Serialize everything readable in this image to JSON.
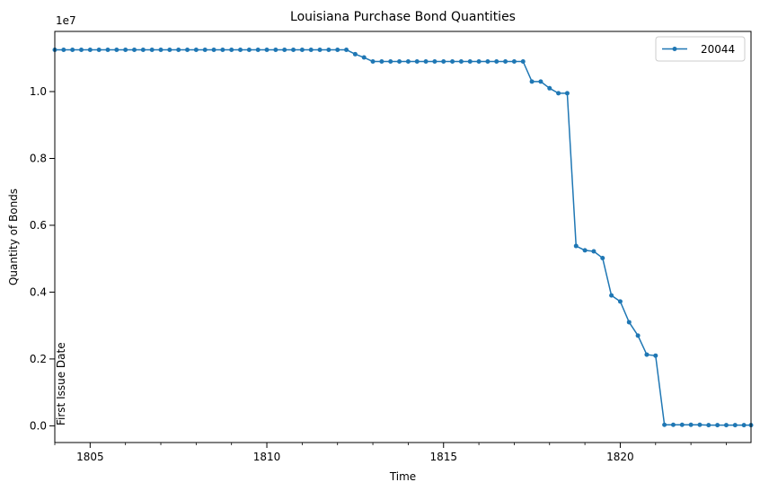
{
  "chart_data": {
    "type": "line",
    "title": "Louisiana Purchase Bond Quantities",
    "xlabel": "Time",
    "ylabel": "Quantity of Bonds",
    "y_offset_label": "1e7",
    "annotation": "First Issue Date",
    "xlim": [
      1804.0,
      1823.7
    ],
    "ylim": [
      -0.05,
      1.18
    ],
    "x_ticks": [
      1805,
      1810,
      1815,
      1820
    ],
    "y_ticks": [
      0.0,
      0.2,
      0.4,
      0.6,
      0.8,
      1.0
    ],
    "y_tick_labels": [
      "0.0",
      "0.2",
      "0.4",
      "0.6",
      "0.8",
      "1.0"
    ],
    "x_tick_labels": [
      "1805",
      "1810",
      "1815",
      "1820"
    ],
    "grid": false,
    "legend_position": "top-right",
    "series": [
      {
        "name": "20044",
        "color": "#1f77b4",
        "marker": "circle",
        "x": [
          1804.0,
          1804.25,
          1804.5,
          1804.75,
          1805.0,
          1805.25,
          1805.5,
          1805.75,
          1806.0,
          1806.25,
          1806.5,
          1806.75,
          1807.0,
          1807.25,
          1807.5,
          1807.75,
          1808.0,
          1808.25,
          1808.5,
          1808.75,
          1809.0,
          1809.25,
          1809.5,
          1809.75,
          1810.0,
          1810.25,
          1810.5,
          1810.75,
          1811.0,
          1811.25,
          1811.5,
          1811.75,
          1812.0,
          1812.25,
          1812.5,
          1812.75,
          1813.0,
          1813.25,
          1813.5,
          1813.75,
          1814.0,
          1814.25,
          1814.5,
          1814.75,
          1815.0,
          1815.25,
          1815.5,
          1815.75,
          1816.0,
          1816.25,
          1816.5,
          1816.75,
          1817.0,
          1817.25,
          1817.5,
          1817.75,
          1818.0,
          1818.25,
          1818.5,
          1818.75,
          1819.0,
          1819.25,
          1819.5,
          1819.75,
          1820.0,
          1820.25,
          1820.5,
          1820.75,
          1821.0,
          1821.25,
          1821.5,
          1821.75,
          1822.0,
          1822.25,
          1822.5,
          1822.75,
          1823.0,
          1823.25,
          1823.5,
          1823.7
        ],
        "y": [
          1.125,
          1.125,
          1.125,
          1.125,
          1.125,
          1.125,
          1.125,
          1.125,
          1.125,
          1.125,
          1.125,
          1.125,
          1.125,
          1.125,
          1.125,
          1.125,
          1.125,
          1.125,
          1.125,
          1.125,
          1.125,
          1.125,
          1.125,
          1.125,
          1.125,
          1.125,
          1.125,
          1.125,
          1.125,
          1.125,
          1.125,
          1.125,
          1.125,
          1.125,
          1.112,
          1.102,
          1.09,
          1.09,
          1.09,
          1.09,
          1.09,
          1.09,
          1.09,
          1.09,
          1.09,
          1.09,
          1.09,
          1.09,
          1.09,
          1.09,
          1.09,
          1.09,
          1.09,
          1.09,
          1.03,
          1.03,
          1.01,
          0.995,
          0.995,
          0.538,
          0.525,
          0.522,
          0.502,
          0.39,
          0.372,
          0.31,
          0.27,
          0.213,
          0.21,
          0.003,
          0.003,
          0.003,
          0.003,
          0.003,
          0.002,
          0.002,
          0.002,
          0.002,
          0.002,
          0.002
        ]
      }
    ]
  }
}
